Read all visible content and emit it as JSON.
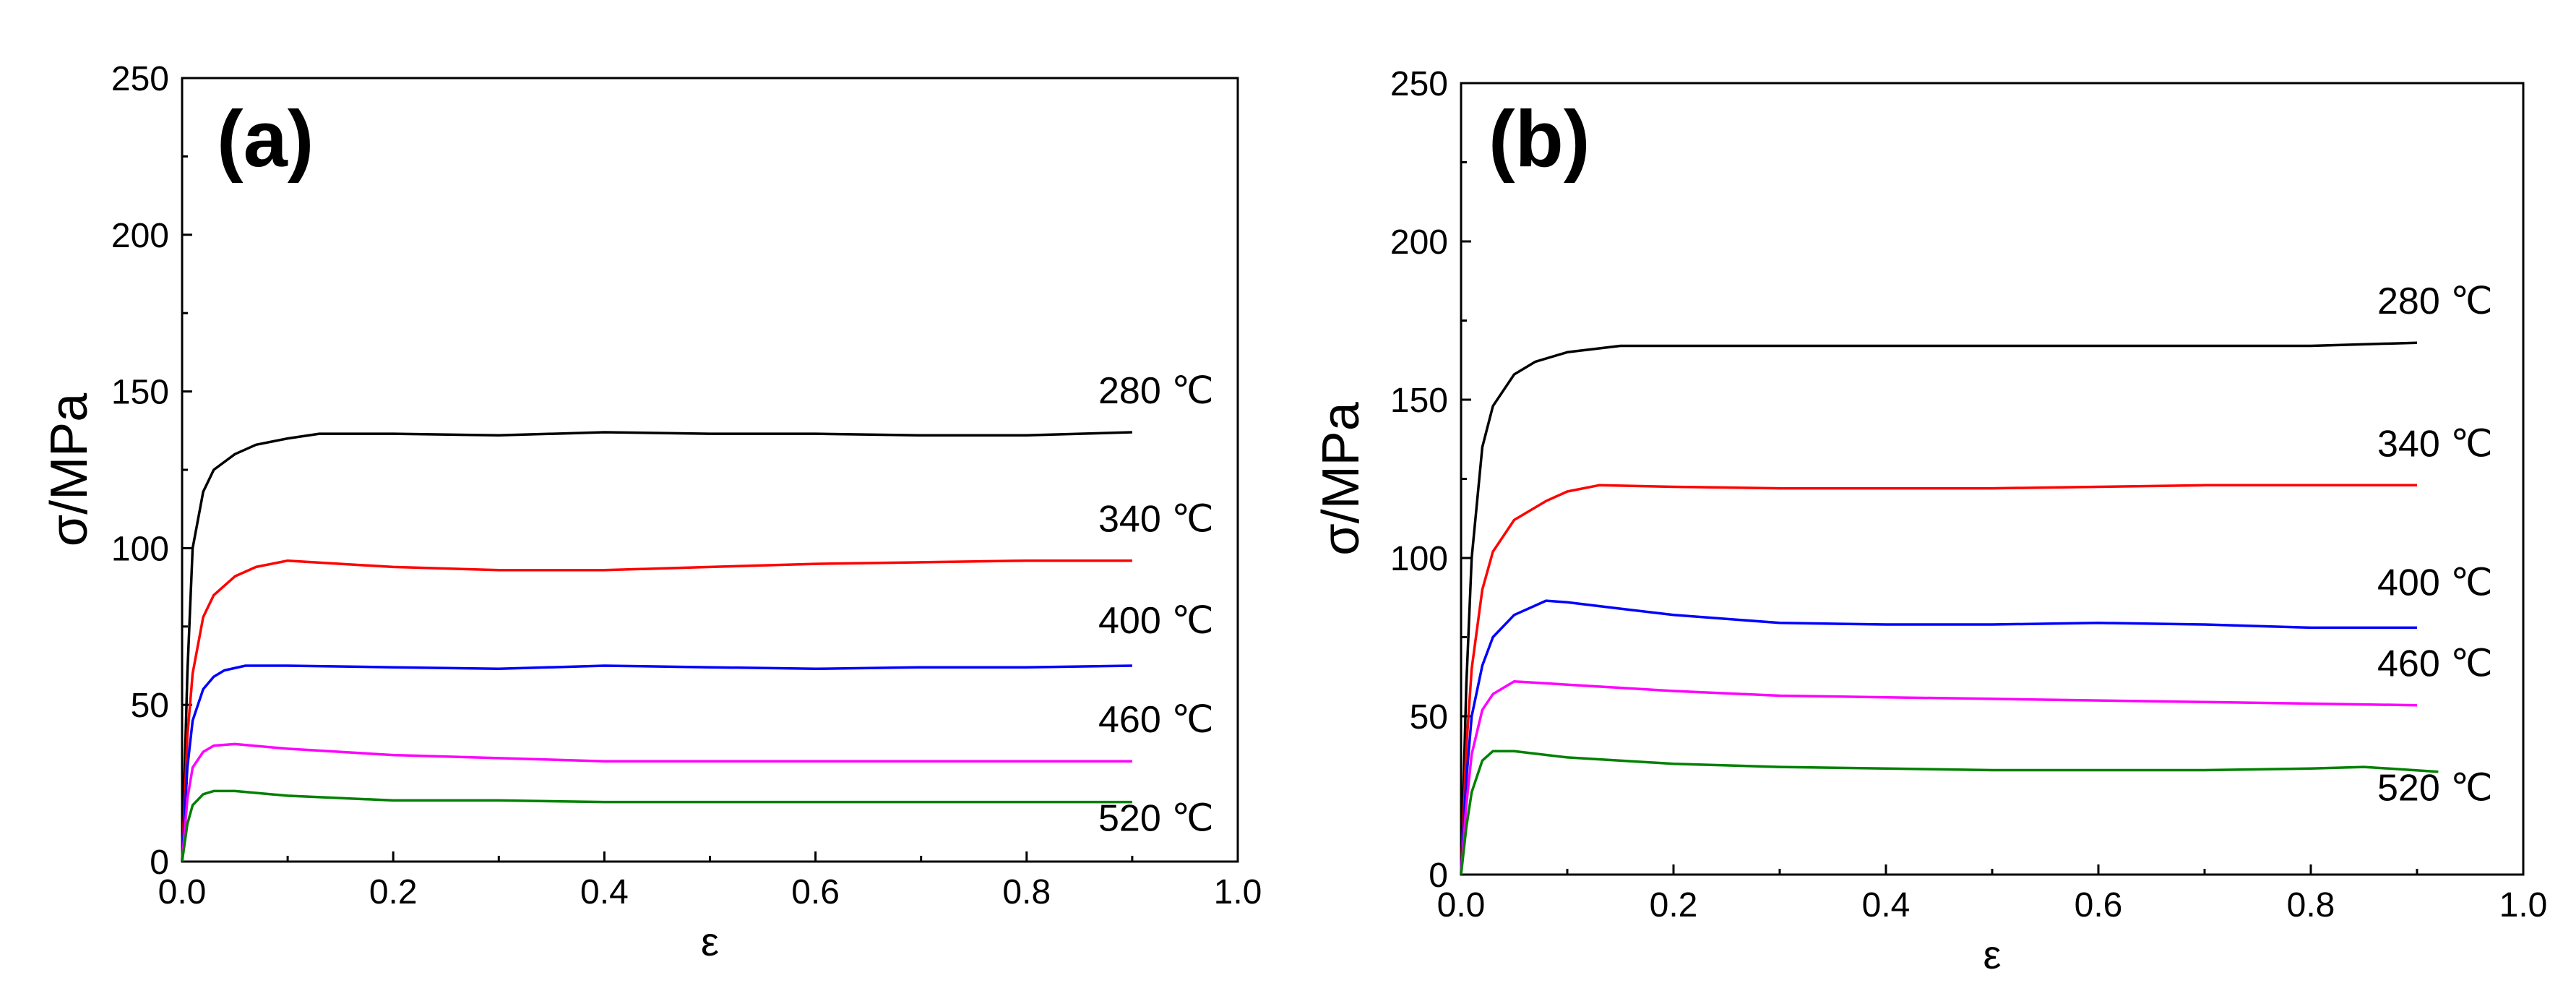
{
  "chart_data": [
    {
      "type": "line",
      "panel_label": "(a)",
      "xlabel": "ε",
      "ylabel": "σ/MPa",
      "xlim": [
        0.0,
        1.0
      ],
      "ylim": [
        0,
        250
      ],
      "xticks": [
        0.0,
        0.2,
        0.4,
        0.6,
        0.8,
        1.0
      ],
      "xtick_labels": [
        "0.0",
        "0.2",
        "0.4",
        "0.6",
        "0.8",
        "1.0"
      ],
      "yticks": [
        0,
        50,
        100,
        150,
        200,
        250
      ],
      "ytick_labels": [
        "0",
        "50",
        "100",
        "150",
        "200",
        "250"
      ],
      "grid": false,
      "legend": "inline-right",
      "series": [
        {
          "name": "280 ℃",
          "color": "#000000",
          "x": [
            0.0,
            0.005,
            0.01,
            0.02,
            0.03,
            0.05,
            0.07,
            0.1,
            0.13,
            0.2,
            0.3,
            0.4,
            0.5,
            0.6,
            0.7,
            0.8,
            0.9
          ],
          "y": [
            0,
            60,
            100,
            118,
            125,
            130,
            133,
            135,
            136.5,
            136.5,
            136,
            137,
            136.5,
            136.5,
            136,
            136,
            137
          ]
        },
        {
          "name": "340 ℃",
          "color": "#ff0000",
          "x": [
            0.0,
            0.005,
            0.01,
            0.02,
            0.03,
            0.05,
            0.07,
            0.1,
            0.15,
            0.2,
            0.3,
            0.4,
            0.5,
            0.6,
            0.7,
            0.8,
            0.9
          ],
          "y": [
            0,
            40,
            60,
            78,
            85,
            91,
            94,
            96,
            95,
            94,
            93,
            93,
            94,
            95,
            95.5,
            96,
            96
          ]
        },
        {
          "name": "400 ℃",
          "color": "#0000ff",
          "x": [
            0.0,
            0.005,
            0.01,
            0.02,
            0.03,
            0.04,
            0.06,
            0.1,
            0.2,
            0.3,
            0.4,
            0.5,
            0.6,
            0.7,
            0.8,
            0.9
          ],
          "y": [
            0,
            30,
            45,
            55,
            59,
            61,
            62.5,
            62.5,
            62,
            61.5,
            62.5,
            62,
            61.5,
            62,
            62,
            62.5
          ]
        },
        {
          "name": "460 ℃",
          "color": "#ff00ff",
          "x": [
            0.0,
            0.005,
            0.01,
            0.02,
            0.03,
            0.05,
            0.1,
            0.2,
            0.3,
            0.4,
            0.5,
            0.6,
            0.7,
            0.8,
            0.9
          ],
          "y": [
            0,
            20,
            30,
            35,
            37,
            37.5,
            36,
            34,
            33,
            32,
            32,
            32,
            32,
            32,
            32
          ]
        },
        {
          "name": "520 ℃",
          "color": "#008000",
          "x": [
            0.0,
            0.005,
            0.01,
            0.02,
            0.03,
            0.05,
            0.1,
            0.2,
            0.3,
            0.4,
            0.5,
            0.6,
            0.7,
            0.8,
            0.9
          ],
          "y": [
            0,
            12,
            18,
            21.5,
            22.5,
            22.5,
            21,
            19.5,
            19.5,
            19,
            19,
            19,
            19,
            19,
            19
          ]
        }
      ]
    },
    {
      "type": "line",
      "panel_label": "(b)",
      "xlabel": "ε",
      "ylabel": "σ/MPa",
      "xlim": [
        0.0,
        1.0
      ],
      "ylim": [
        0,
        250
      ],
      "xticks": [
        0.0,
        0.2,
        0.4,
        0.6,
        0.8,
        1.0
      ],
      "xtick_labels": [
        "0.0",
        "0.2",
        "0.4",
        "0.6",
        "0.8",
        "1.0"
      ],
      "yticks": [
        0,
        50,
        100,
        150,
        200,
        250
      ],
      "ytick_labels": [
        "0",
        "50",
        "100",
        "150",
        "200",
        "250"
      ],
      "grid": false,
      "legend": "inline-right",
      "series": [
        {
          "name": "280 ℃",
          "color": "#000000",
          "x": [
            0.0,
            0.005,
            0.01,
            0.02,
            0.03,
            0.05,
            0.07,
            0.1,
            0.15,
            0.2,
            0.3,
            0.4,
            0.5,
            0.6,
            0.7,
            0.8,
            0.9
          ],
          "y": [
            0,
            60,
            100,
            135,
            148,
            158,
            162,
            165,
            167,
            167,
            167,
            167,
            167,
            167,
            167,
            167,
            168
          ]
        },
        {
          "name": "340 ℃",
          "color": "#ff0000",
          "x": [
            0.0,
            0.005,
            0.01,
            0.02,
            0.03,
            0.05,
            0.08,
            0.1,
            0.13,
            0.2,
            0.3,
            0.4,
            0.5,
            0.6,
            0.7,
            0.8,
            0.9
          ],
          "y": [
            0,
            40,
            65,
            90,
            102,
            112,
            118,
            121,
            123,
            122.5,
            122,
            122,
            122,
            122.5,
            123,
            123,
            123
          ]
        },
        {
          "name": "400 ℃",
          "color": "#0000ff",
          "x": [
            0.0,
            0.005,
            0.01,
            0.02,
            0.03,
            0.05,
            0.08,
            0.1,
            0.15,
            0.2,
            0.3,
            0.4,
            0.5,
            0.6,
            0.7,
            0.8,
            0.9
          ],
          "y": [
            0,
            30,
            50,
            66,
            75,
            82,
            86.5,
            86,
            84,
            82,
            79.5,
            79,
            79,
            79.5,
            79,
            78,
            78
          ]
        },
        {
          "name": "460 ℃",
          "color": "#ff00ff",
          "x": [
            0.0,
            0.005,
            0.01,
            0.02,
            0.03,
            0.05,
            0.1,
            0.2,
            0.3,
            0.4,
            0.5,
            0.6,
            0.7,
            0.8,
            0.9
          ],
          "y": [
            0,
            22,
            38,
            52,
            57,
            61,
            60,
            58,
            56.5,
            56,
            55.5,
            55,
            54.5,
            54,
            53.5
          ]
        },
        {
          "name": "520 ℃",
          "color": "#008000",
          "x": [
            0.0,
            0.005,
            0.01,
            0.02,
            0.03,
            0.05,
            0.1,
            0.2,
            0.3,
            0.4,
            0.5,
            0.6,
            0.7,
            0.8,
            0.85,
            0.92
          ],
          "y": [
            0,
            15,
            26,
            36,
            39,
            39,
            37,
            35,
            34,
            33.5,
            33,
            33,
            33,
            33.5,
            34,
            32.5
          ]
        }
      ]
    }
  ]
}
